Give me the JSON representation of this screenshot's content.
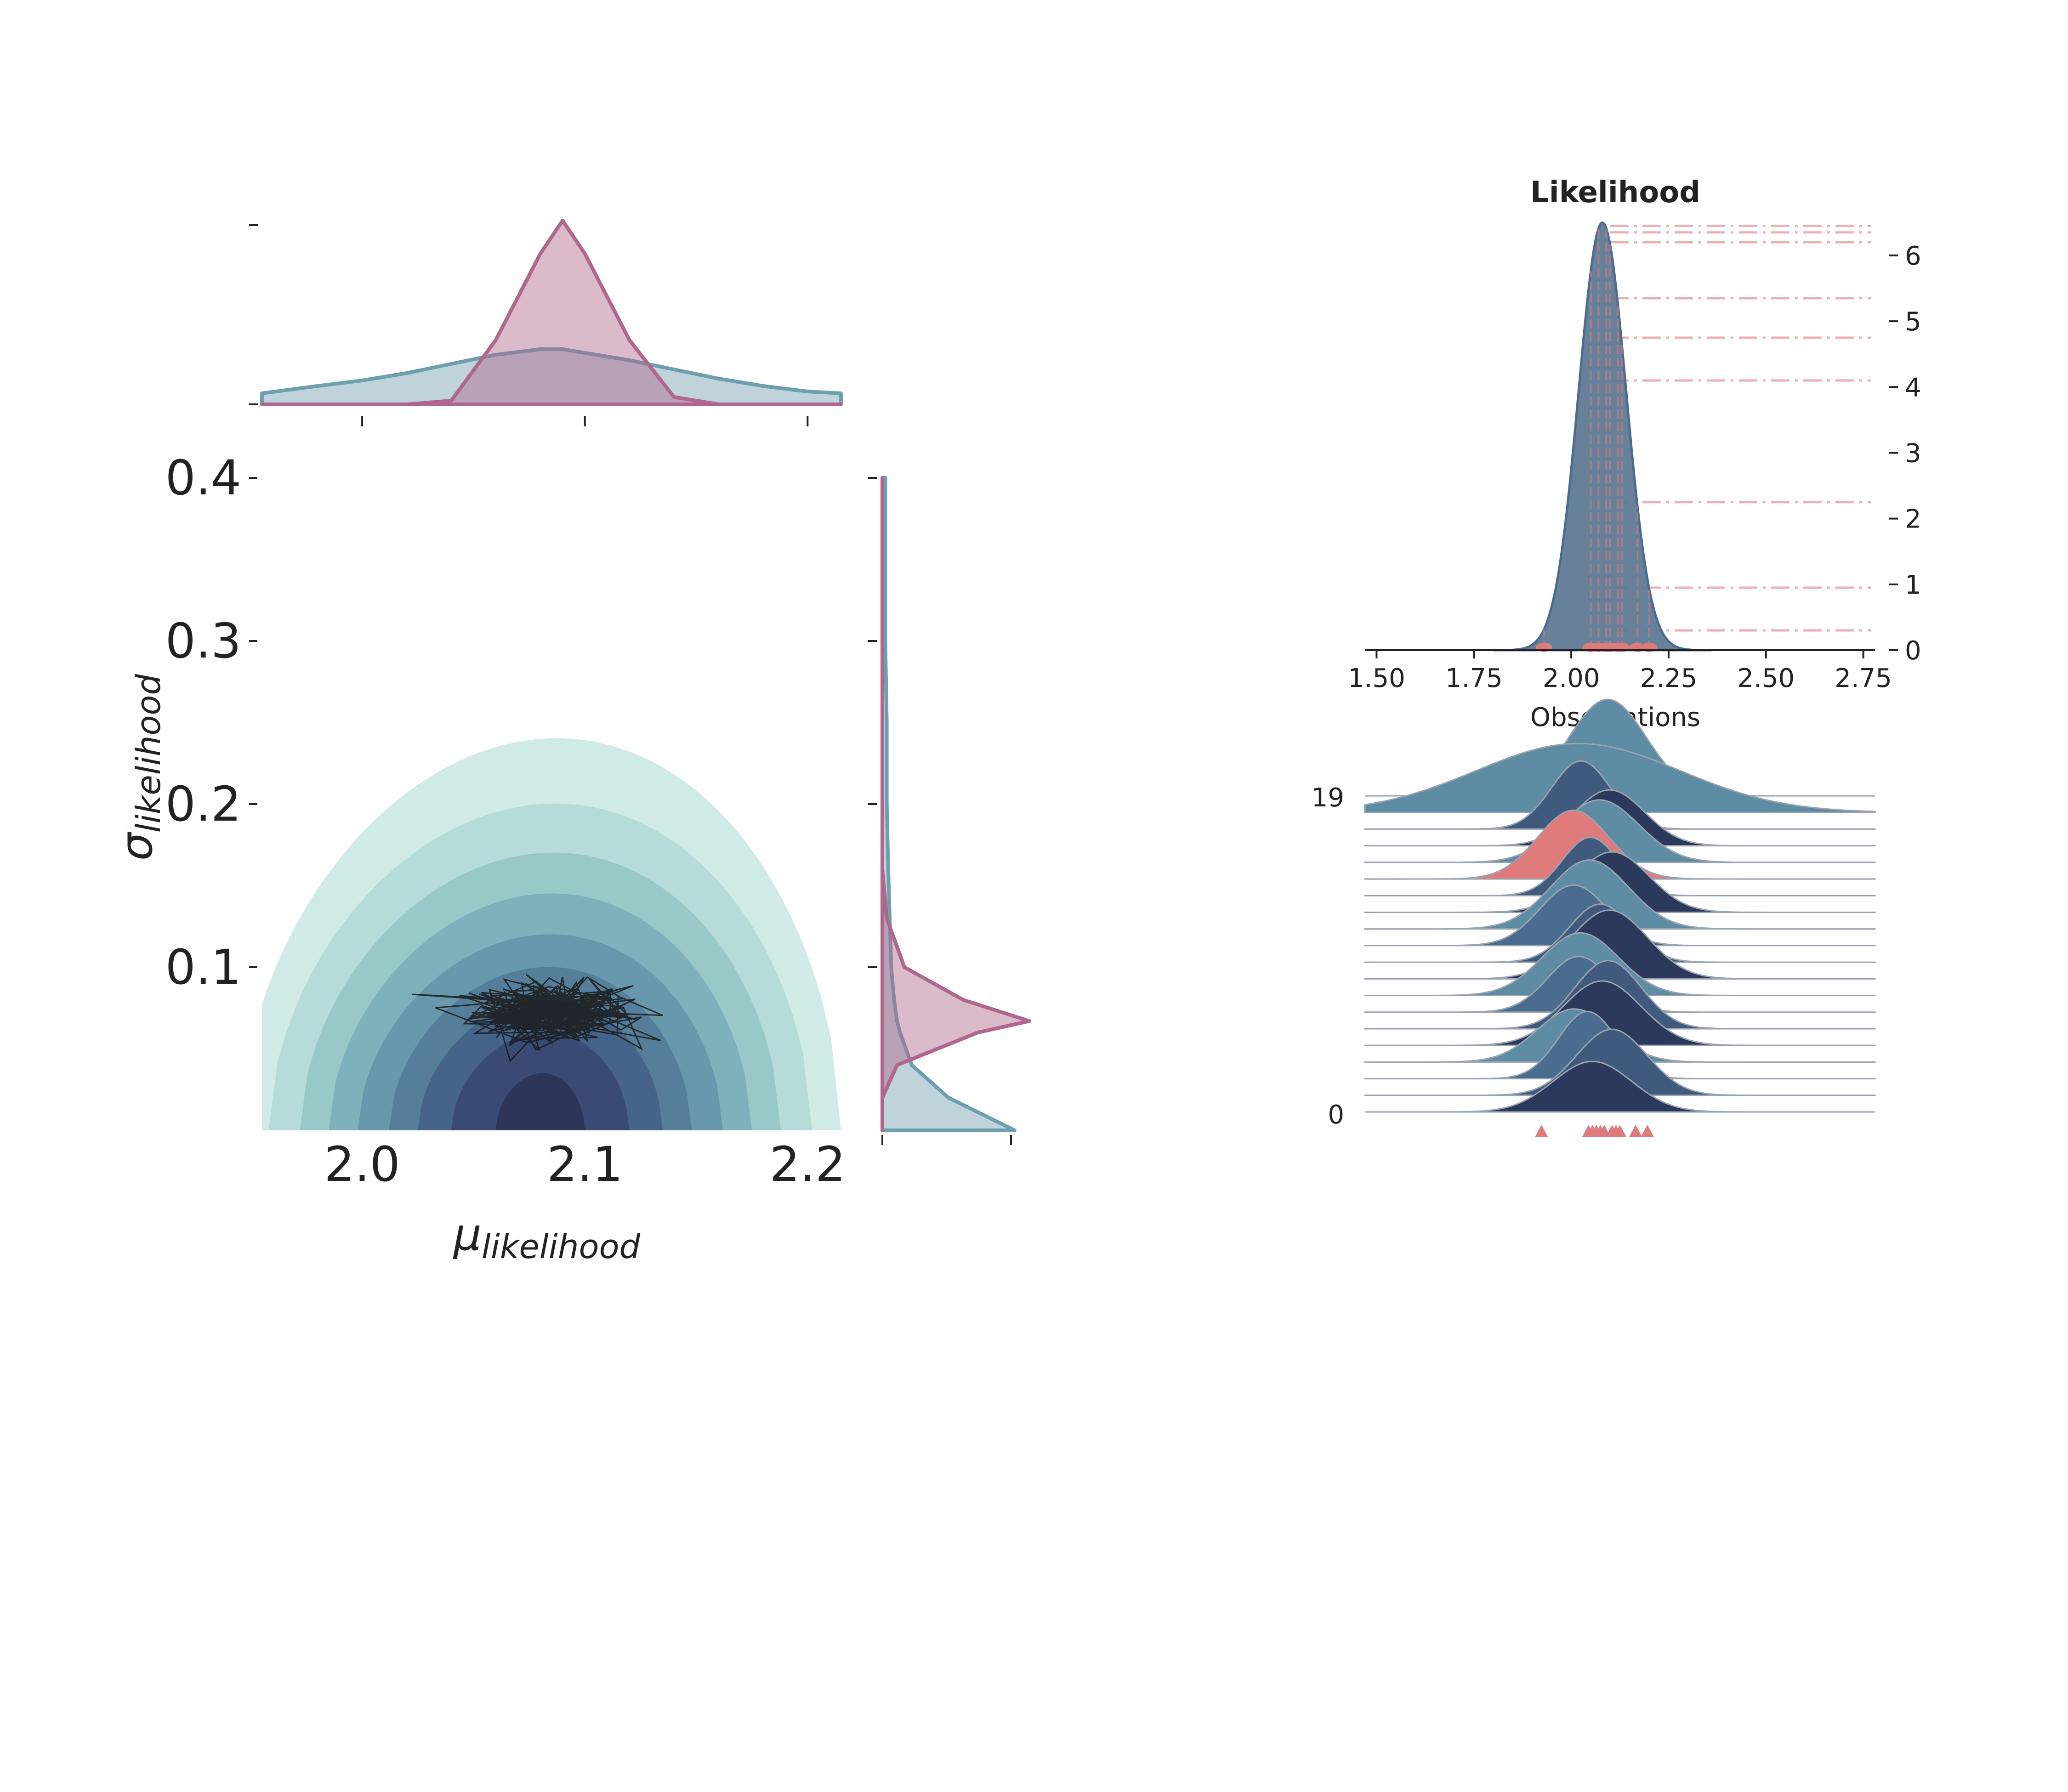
{
  "colors": {
    "background": "#ffffff",
    "text": "#222222",
    "posterior": "#b0678d",
    "prior": "#6e9fae",
    "contour": [
      "#d0ebe6",
      "#b5dcd8",
      "#99c8c9",
      "#7eb1bb",
      "#6898ab",
      "#557e9b",
      "#46648a",
      "#394b75",
      "#2d3558"
    ],
    "trace": "#1a1a1a",
    "ridge": [
      "#2b3a5c",
      "#405a7d",
      "#4a6d8f",
      "#5e8ca5"
    ],
    "ridge_line": "#2b3a5c",
    "observations": "#e07b7b",
    "likelihood_fill": "#5e7a94"
  },
  "chart_data": [
    {
      "id": "joint",
      "type": "contour",
      "xlabel_main": "μ",
      "xlabel_sub": "likelihood",
      "ylabel_main": "σ",
      "ylabel_sub": "likelihood",
      "xlim": [
        1.955,
        2.215
      ],
      "ylim": [
        0.0,
        0.4
      ],
      "xticks": [
        2.0,
        2.1,
        2.2
      ],
      "xtick_labels": [
        "2.0",
        "2.1",
        "2.2"
      ],
      "yticks": [
        0.1,
        0.2,
        0.3,
        0.4
      ],
      "ytick_labels": [
        "0.1",
        "0.2",
        "0.3",
        "0.4"
      ],
      "contour_center": [
        2.08,
        0.0
      ],
      "contour_half_widths_x": [
        0.135,
        0.122,
        0.108,
        0.095,
        0.082,
        0.068,
        0.055,
        0.04,
        0.02
      ],
      "contour_heights_y": [
        0.24,
        0.2,
        0.17,
        0.145,
        0.12,
        0.1,
        0.08,
        0.06,
        0.035
      ],
      "trace_center": [
        2.085,
        0.073
      ],
      "trace_spread": [
        0.018,
        0.009
      ]
    },
    {
      "id": "marginal_mu",
      "type": "area",
      "x": [
        1.955,
        1.98,
        2.0,
        2.02,
        2.04,
        2.06,
        2.08,
        2.09,
        2.1,
        2.12,
        2.14,
        2.16,
        2.18,
        2.2,
        2.215
      ],
      "series": [
        {
          "values": [
            0.0,
            0.0,
            0.0,
            0.0,
            0.02,
            0.35,
            0.82,
            1.0,
            0.82,
            0.35,
            0.04,
            0.0,
            0.0,
            0.0,
            0.0
          ]
        },
        {
          "values": [
            0.06,
            0.1,
            0.13,
            0.17,
            0.22,
            0.27,
            0.3,
            0.3,
            0.28,
            0.24,
            0.19,
            0.14,
            0.1,
            0.07,
            0.06
          ]
        }
      ]
    },
    {
      "id": "marginal_sigma",
      "type": "area",
      "y": [
        0.0,
        0.02,
        0.04,
        0.06,
        0.067,
        0.08,
        0.1,
        0.13,
        0.16,
        0.2,
        0.25,
        0.3,
        0.35,
        0.4
      ],
      "series": [
        {
          "values": [
            0.0,
            0.0,
            0.1,
            0.65,
            1.0,
            0.55,
            0.15,
            0.03,
            0.0,
            0.0,
            0.0,
            0.0,
            0.0,
            0.0
          ]
        },
        {
          "values": [
            0.9,
            0.45,
            0.2,
            0.12,
            0.1,
            0.08,
            0.06,
            0.05,
            0.04,
            0.03,
            0.03,
            0.02,
            0.02,
            0.02
          ]
        }
      ]
    },
    {
      "id": "likelihood",
      "type": "area",
      "title": "Likelihood",
      "xlabel": "Observations",
      "xlim": [
        1.47,
        2.78
      ],
      "ylim": [
        0,
        6.6
      ],
      "xticks": [
        1.5,
        1.75,
        2.0,
        2.25,
        2.5,
        2.75
      ],
      "xtick_labels": [
        "1.50",
        "1.75",
        "2.00",
        "2.25",
        "2.50",
        "2.75"
      ],
      "yticks": [
        0,
        1,
        2,
        3,
        4,
        5,
        6
      ],
      "ytick_labels": [
        "0",
        "1",
        "2",
        "3",
        "4",
        "5",
        "6"
      ],
      "mean": 2.08,
      "sd": 0.061,
      "peak": 6.5,
      "obs_x": [
        1.93,
        2.05,
        2.07,
        2.09,
        2.1,
        2.12,
        2.13,
        2.17,
        2.2
      ],
      "obs_lines_y": [
        0.3,
        0.95,
        2.25,
        4.1,
        4.75,
        5.35,
        6.2,
        6.35,
        6.45
      ]
    },
    {
      "id": "ridge",
      "type": "ridgeline",
      "ytick_labels": [
        "0",
        "19"
      ],
      "count": 20,
      "highlight_index": 14,
      "obs_x": [
        1.93,
        2.05,
        2.06,
        2.07,
        2.08,
        2.09,
        2.11,
        2.12,
        2.13,
        2.17,
        2.2
      ]
    }
  ]
}
